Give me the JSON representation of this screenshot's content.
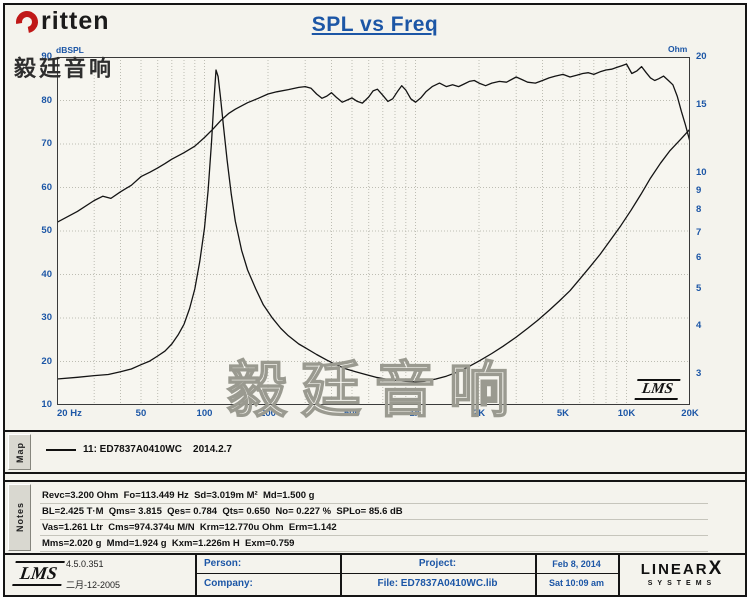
{
  "colors": {
    "accent_blue": "#1c56a6",
    "curve_black": "#141414",
    "grid_gray": "#bdbdb3",
    "frame_black": "#151515",
    "logo_red": "#c01818"
  },
  "header": {
    "title": "SPL vs Freq",
    "brand": "ritten",
    "brand_cn": "毅廷音响"
  },
  "chart_data": {
    "type": "line",
    "title": "SPL vs Freq",
    "watermark": "毅廷音响",
    "lms_mark": "LMS",
    "grid": true,
    "x_axis": {
      "label": "Hz",
      "scale": "log",
      "min": 20,
      "max": 20000,
      "ticks": [
        "20 Hz",
        "50",
        "100",
        "200",
        "500",
        "1K",
        "2K",
        "5K",
        "10K",
        "20K"
      ],
      "tick_values": [
        20,
        50,
        100,
        200,
        500,
        1000,
        2000,
        5000,
        10000,
        20000
      ]
    },
    "y_left": {
      "label": "dBSPL",
      "scale": "linear",
      "min": 10,
      "max": 90,
      "ticks": [
        90,
        80,
        70,
        60,
        50,
        40,
        30,
        20,
        10
      ]
    },
    "y_right": {
      "label": "Ohm",
      "scale": "log",
      "min": 2.5,
      "max": 20,
      "ticks": [
        20,
        15,
        10,
        9,
        8,
        7,
        6,
        5,
        4,
        3
      ]
    },
    "series": [
      {
        "name": "SPL (dBSPL)",
        "axis": "left",
        "points": [
          [
            20,
            52
          ],
          [
            25,
            54.5
          ],
          [
            30,
            57
          ],
          [
            33,
            58
          ],
          [
            36,
            57.5
          ],
          [
            40,
            59
          ],
          [
            45,
            60.5
          ],
          [
            50,
            62.5
          ],
          [
            55,
            63.5
          ],
          [
            60,
            64.5
          ],
          [
            65,
            65.5
          ],
          [
            70,
            66.5
          ],
          [
            80,
            68
          ],
          [
            90,
            69.5
          ],
          [
            100,
            71.5
          ],
          [
            110,
            73.5
          ],
          [
            120,
            75.5
          ],
          [
            130,
            77
          ],
          [
            140,
            78
          ],
          [
            160,
            79.5
          ],
          [
            180,
            80.5
          ],
          [
            200,
            81.5
          ],
          [
            220,
            82
          ],
          [
            250,
            82.5
          ],
          [
            280,
            83
          ],
          [
            300,
            83.2
          ],
          [
            320,
            82.8
          ],
          [
            340,
            81.5
          ],
          [
            360,
            80.5
          ],
          [
            380,
            81
          ],
          [
            400,
            81.8
          ],
          [
            420,
            80.8
          ],
          [
            450,
            79.6
          ],
          [
            480,
            80.2
          ],
          [
            500,
            80.6
          ],
          [
            530,
            79.8
          ],
          [
            560,
            79.4
          ],
          [
            600,
            80.8
          ],
          [
            630,
            82.2
          ],
          [
            660,
            82.6
          ],
          [
            700,
            81.2
          ],
          [
            740,
            79.8
          ],
          [
            780,
            80.4
          ],
          [
            820,
            82
          ],
          [
            860,
            83.4
          ],
          [
            900,
            82.4
          ],
          [
            950,
            80.4
          ],
          [
            1000,
            79.6
          ],
          [
            1060,
            80.6
          ],
          [
            1120,
            82
          ],
          [
            1200,
            83.2
          ],
          [
            1300,
            84
          ],
          [
            1400,
            83.2
          ],
          [
            1500,
            83.6
          ],
          [
            1600,
            83.2
          ],
          [
            1700,
            83.8
          ],
          [
            1800,
            84.4
          ],
          [
            1900,
            84.6
          ],
          [
            2000,
            84
          ],
          [
            2150,
            83.4
          ],
          [
            2300,
            84
          ],
          [
            2500,
            84.4
          ],
          [
            2700,
            84.2
          ],
          [
            3000,
            85.4
          ],
          [
            3200,
            84.8
          ],
          [
            3400,
            84.2
          ],
          [
            3700,
            84
          ],
          [
            4000,
            84.6
          ],
          [
            4300,
            85.2
          ],
          [
            4600,
            85.6
          ],
          [
            5000,
            86
          ],
          [
            5400,
            85.4
          ],
          [
            5800,
            85.8
          ],
          [
            6200,
            86.2
          ],
          [
            6600,
            86.4
          ],
          [
            7000,
            86
          ],
          [
            7500,
            86.6
          ],
          [
            8000,
            87
          ],
          [
            8500,
            87.2
          ],
          [
            9000,
            87.6
          ],
          [
            9500,
            88
          ],
          [
            10000,
            88.4
          ],
          [
            10600,
            86.2
          ],
          [
            11200,
            86.8
          ],
          [
            11800,
            87.8
          ],
          [
            12400,
            86.4
          ],
          [
            13000,
            85.2
          ],
          [
            13600,
            84.6
          ],
          [
            14200,
            85
          ],
          [
            15000,
            85.6
          ],
          [
            15800,
            84.6
          ],
          [
            16600,
            83.6
          ],
          [
            17400,
            81
          ],
          [
            18200,
            77.5
          ],
          [
            19000,
            74.5
          ],
          [
            20000,
            70.5
          ]
        ]
      },
      {
        "name": "Impedance (Ohm)",
        "axis": "right",
        "points": [
          [
            20,
            2.92
          ],
          [
            25,
            2.95
          ],
          [
            30,
            2.98
          ],
          [
            35,
            3.0
          ],
          [
            40,
            3.05
          ],
          [
            45,
            3.1
          ],
          [
            50,
            3.18
          ],
          [
            55,
            3.25
          ],
          [
            60,
            3.35
          ],
          [
            65,
            3.45
          ],
          [
            70,
            3.6
          ],
          [
            75,
            3.8
          ],
          [
            80,
            4.05
          ],
          [
            85,
            4.45
          ],
          [
            90,
            5.0
          ],
          [
            95,
            5.9
          ],
          [
            100,
            7.2
          ],
          [
            104,
            9.0
          ],
          [
            108,
            12.0
          ],
          [
            111,
            15.5
          ],
          [
            113.4,
            18.5
          ],
          [
            116,
            17.8
          ],
          [
            119,
            15.8
          ],
          [
            123,
            13.2
          ],
          [
            128,
            10.8
          ],
          [
            134,
            8.8
          ],
          [
            140,
            7.5
          ],
          [
            150,
            6.3
          ],
          [
            160,
            5.6
          ],
          [
            175,
            5.0
          ],
          [
            190,
            4.55
          ],
          [
            210,
            4.2
          ],
          [
            230,
            3.95
          ],
          [
            250,
            3.78
          ],
          [
            280,
            3.6
          ],
          [
            300,
            3.52
          ],
          [
            340,
            3.38
          ],
          [
            380,
            3.27
          ],
          [
            420,
            3.18
          ],
          [
            470,
            3.1
          ],
          [
            520,
            3.05
          ],
          [
            580,
            3.0
          ],
          [
            650,
            2.95
          ],
          [
            720,
            2.92
          ],
          [
            800,
            2.9
          ],
          [
            900,
            2.88
          ],
          [
            1000,
            2.87
          ],
          [
            1100,
            2.88
          ],
          [
            1250,
            2.92
          ],
          [
            1400,
            2.97
          ],
          [
            1600,
            3.05
          ],
          [
            1800,
            3.15
          ],
          [
            2000,
            3.25
          ],
          [
            2300,
            3.4
          ],
          [
            2600,
            3.55
          ],
          [
            3000,
            3.75
          ],
          [
            3400,
            3.95
          ],
          [
            3800,
            4.15
          ],
          [
            4300,
            4.4
          ],
          [
            4800,
            4.65
          ],
          [
            5400,
            4.95
          ],
          [
            6000,
            5.3
          ],
          [
            6700,
            5.7
          ],
          [
            7500,
            6.15
          ],
          [
            8400,
            6.7
          ],
          [
            9400,
            7.3
          ],
          [
            10500,
            8.0
          ],
          [
            11700,
            8.8
          ],
          [
            13000,
            9.7
          ],
          [
            14500,
            10.6
          ],
          [
            16000,
            11.4
          ],
          [
            18000,
            12.2
          ],
          [
            20000,
            13.0
          ]
        ]
      }
    ]
  },
  "map": {
    "label": "Map",
    "legend": "11: ED7837A0410WC    2014.2.7"
  },
  "notes": {
    "label": "Notes",
    "lines": [
      "Revc=3.200 Ohm  Fo=113.449 Hz  Sd=3.019m M²  Md=1.500 g",
      "BL=2.425 T·M  Qms= 3.815  Qes= 0.784  Qts= 0.650  No= 0.227 %  SPLo= 85.6 dB",
      "Vas=1.261 Ltr  Cms=974.374u M/N  Krm=12.770u Ohm  Erm=1.142",
      "Mms=2.020 g  Mmd=1.924 g  Kxm=1.226m H  Exm=0.759"
    ]
  },
  "footer": {
    "lms_logo": "LMS",
    "version": "4.5.0.351",
    "date_cn": "二月-12-2005",
    "person_label": "Person:",
    "company_label": "Company:",
    "project_label": "Project:",
    "file_label": "File: ED7837A0410WC.lib",
    "date": "Feb  8, 2014",
    "time": "Sat 10:09 am",
    "brand1": "LINEAR",
    "brand_x": "X",
    "brand2": "SYSTEMS"
  }
}
